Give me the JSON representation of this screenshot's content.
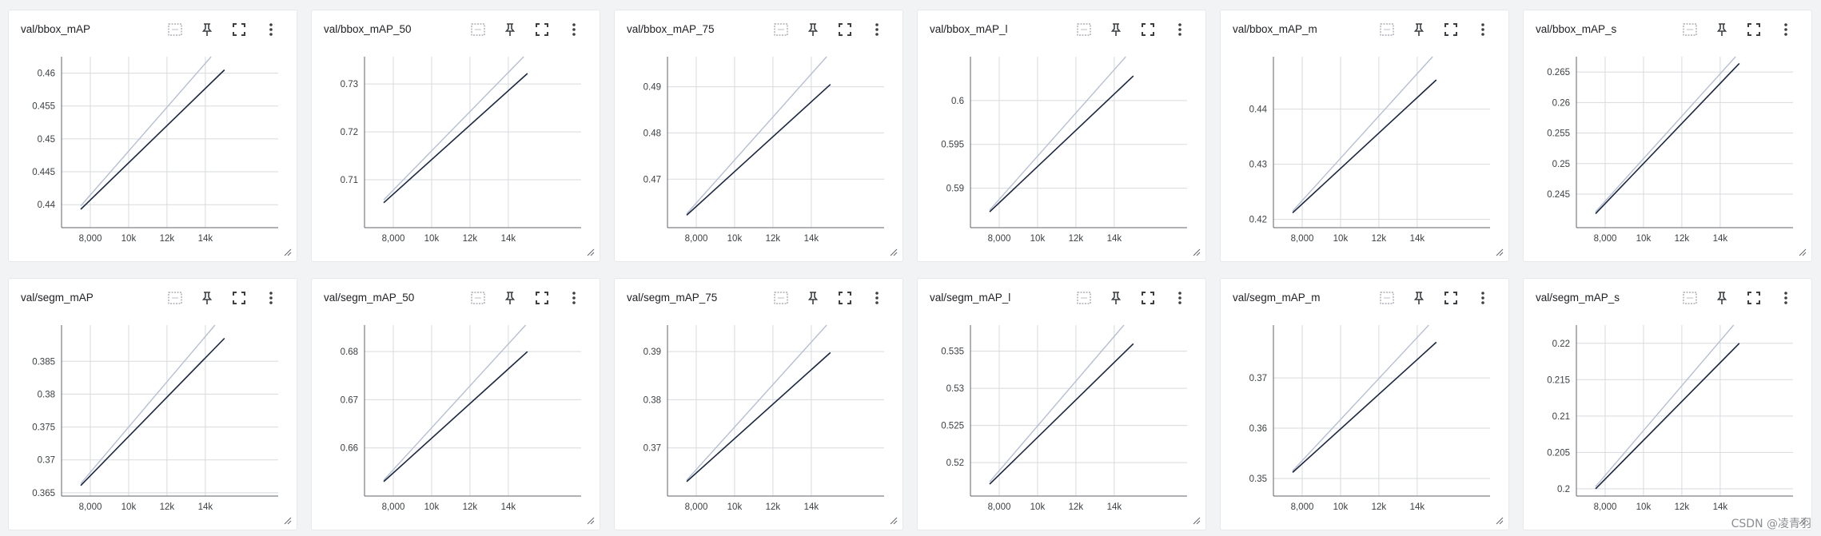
{
  "colors": {
    "smoothed": "#1b2640",
    "raw": "#b6bfd2",
    "grid": "#d7dadd",
    "axis": "#5f6368"
  },
  "icons": [
    "data-download-icon",
    "pin-icon",
    "fullscreen-icon",
    "more-vert-icon",
    "resize-handle-icon"
  ],
  "watermark": "CSDN @凌青羽",
  "chart_data": [
    {
      "type": "line",
      "title": "val/bbox_mAP",
      "xlabel": "",
      "ylabel": "",
      "xlim": [
        6500,
        17800
      ],
      "ylim": [
        0.4365,
        0.4625
      ],
      "xticks": [
        {
          "v": 8000,
          "label": "8,000"
        },
        {
          "v": 10000,
          "label": "10k"
        },
        {
          "v": 12000,
          "label": "12k"
        },
        {
          "v": 14000,
          "label": "14k"
        }
      ],
      "yticks": [
        {
          "v": 0.44,
          "label": "0.44"
        },
        {
          "v": 0.445,
          "label": "0.445"
        },
        {
          "v": 0.45,
          "label": "0.45"
        },
        {
          "v": 0.455,
          "label": "0.455"
        },
        {
          "v": 0.46,
          "label": "0.46"
        }
      ],
      "series": [
        {
          "x": [
            7500,
            15000
          ],
          "y": [
            0.4393,
            0.4605
          ]
        },
        {
          "x": [
            7500,
            14300
          ],
          "y": [
            0.4398,
            0.4625
          ]
        }
      ]
    },
    {
      "type": "line",
      "title": "val/bbox_mAP_50",
      "xlabel": "",
      "ylabel": "",
      "xlim": [
        6500,
        17800
      ],
      "ylim": [
        0.7,
        0.7357
      ],
      "xticks": [
        {
          "v": 8000,
          "label": "8,000"
        },
        {
          "v": 10000,
          "label": "10k"
        },
        {
          "v": 12000,
          "label": "12k"
        },
        {
          "v": 14000,
          "label": "14k"
        }
      ],
      "yticks": [
        {
          "v": 0.71,
          "label": "0.71"
        },
        {
          "v": 0.72,
          "label": "0.72"
        },
        {
          "v": 0.73,
          "label": "0.73"
        }
      ],
      "series": [
        {
          "x": [
            7500,
            15000
          ],
          "y": [
            0.7052,
            0.7322
          ]
        },
        {
          "x": [
            7500,
            14800
          ],
          "y": [
            0.7058,
            0.7357
          ]
        }
      ]
    },
    {
      "type": "line",
      "title": "val/bbox_mAP_75",
      "xlabel": "",
      "ylabel": "",
      "xlim": [
        6500,
        17800
      ],
      "ylim": [
        0.4595,
        0.4965
      ],
      "xticks": [
        {
          "v": 8000,
          "label": "8,000"
        },
        {
          "v": 10000,
          "label": "10k"
        },
        {
          "v": 12000,
          "label": "12k"
        },
        {
          "v": 14000,
          "label": "14k"
        }
      ],
      "yticks": [
        {
          "v": 0.47,
          "label": "0.47"
        },
        {
          "v": 0.48,
          "label": "0.48"
        },
        {
          "v": 0.49,
          "label": "0.49"
        }
      ],
      "series": [
        {
          "x": [
            7500,
            15000
          ],
          "y": [
            0.4622,
            0.4905
          ]
        },
        {
          "x": [
            7500,
            14800
          ],
          "y": [
            0.4625,
            0.4965
          ]
        }
      ]
    },
    {
      "type": "line",
      "title": "val/bbox_mAP_l",
      "xlabel": "",
      "ylabel": "",
      "xlim": [
        6500,
        17800
      ],
      "ylim": [
        0.5855,
        0.605
      ],
      "xticks": [
        {
          "v": 8000,
          "label": "8,000"
        },
        {
          "v": 10000,
          "label": "10k"
        },
        {
          "v": 12000,
          "label": "12k"
        },
        {
          "v": 14000,
          "label": "14k"
        }
      ],
      "yticks": [
        {
          "v": 0.59,
          "label": "0.59"
        },
        {
          "v": 0.595,
          "label": "0.595"
        },
        {
          "v": 0.6,
          "label": "0.6"
        }
      ],
      "series": [
        {
          "x": [
            7500,
            15000
          ],
          "y": [
            0.5873,
            0.6028
          ]
        },
        {
          "x": [
            7500,
            14600
          ],
          "y": [
            0.5875,
            0.605
          ]
        }
      ]
    },
    {
      "type": "line",
      "title": "val/bbox_mAP_m",
      "xlabel": "",
      "ylabel": "",
      "xlim": [
        6500,
        17800
      ],
      "ylim": [
        0.4185,
        0.4495
      ],
      "xticks": [
        {
          "v": 8000,
          "label": "8,000"
        },
        {
          "v": 10000,
          "label": "10k"
        },
        {
          "v": 12000,
          "label": "12k"
        },
        {
          "v": 14000,
          "label": "14k"
        }
      ],
      "yticks": [
        {
          "v": 0.42,
          "label": "0.42"
        },
        {
          "v": 0.43,
          "label": "0.43"
        },
        {
          "v": 0.44,
          "label": "0.44"
        }
      ],
      "series": [
        {
          "x": [
            7500,
            15000
          ],
          "y": [
            0.4212,
            0.4453
          ]
        },
        {
          "x": [
            7500,
            14800
          ],
          "y": [
            0.4215,
            0.4495
          ]
        }
      ]
    },
    {
      "type": "line",
      "title": "val/bbox_mAP_s",
      "xlabel": "",
      "ylabel": "",
      "xlim": [
        6500,
        17800
      ],
      "ylim": [
        0.2395,
        0.2675
      ],
      "xticks": [
        {
          "v": 8000,
          "label": "8,000"
        },
        {
          "v": 10000,
          "label": "10k"
        },
        {
          "v": 12000,
          "label": "12k"
        },
        {
          "v": 14000,
          "label": "14k"
        }
      ],
      "yticks": [
        {
          "v": 0.245,
          "label": "0.245"
        },
        {
          "v": 0.25,
          "label": "0.25"
        },
        {
          "v": 0.255,
          "label": "0.255"
        },
        {
          "v": 0.26,
          "label": "0.26"
        },
        {
          "v": 0.265,
          "label": "0.265"
        }
      ],
      "series": [
        {
          "x": [
            7500,
            15000
          ],
          "y": [
            0.2418,
            0.2664
          ]
        },
        {
          "x": [
            7500,
            14800
          ],
          "y": [
            0.2421,
            0.2675
          ]
        }
      ]
    },
    {
      "type": "line",
      "title": "val/segm_mAP",
      "xlabel": "",
      "ylabel": "",
      "xlim": [
        6500,
        17800
      ],
      "ylim": [
        0.3645,
        0.3905
      ],
      "xticks": [
        {
          "v": 8000,
          "label": "8,000"
        },
        {
          "v": 10000,
          "label": "10k"
        },
        {
          "v": 12000,
          "label": "12k"
        },
        {
          "v": 14000,
          "label": "14k"
        }
      ],
      "yticks": [
        {
          "v": 0.365,
          "label": "0.365"
        },
        {
          "v": 0.37,
          "label": "0.37"
        },
        {
          "v": 0.375,
          "label": "0.375"
        },
        {
          "v": 0.38,
          "label": "0.38"
        },
        {
          "v": 0.385,
          "label": "0.385"
        }
      ],
      "series": [
        {
          "x": [
            7500,
            15000
          ],
          "y": [
            0.3661,
            0.3885
          ]
        },
        {
          "x": [
            7500,
            14500
          ],
          "y": [
            0.3664,
            0.3905
          ]
        }
      ]
    },
    {
      "type": "line",
      "title": "val/segm_mAP_50",
      "xlabel": "",
      "ylabel": "",
      "xlim": [
        6500,
        17800
      ],
      "ylim": [
        0.65,
        0.6855
      ],
      "xticks": [
        {
          "v": 8000,
          "label": "8,000"
        },
        {
          "v": 10000,
          "label": "10k"
        },
        {
          "v": 12000,
          "label": "12k"
        },
        {
          "v": 14000,
          "label": "14k"
        }
      ],
      "yticks": [
        {
          "v": 0.66,
          "label": "0.66"
        },
        {
          "v": 0.67,
          "label": "0.67"
        },
        {
          "v": 0.68,
          "label": "0.68"
        }
      ],
      "series": [
        {
          "x": [
            7500,
            15000
          ],
          "y": [
            0.653,
            0.68
          ]
        },
        {
          "x": [
            7500,
            14900
          ],
          "y": [
            0.6533,
            0.6855
          ]
        }
      ]
    },
    {
      "type": "line",
      "title": "val/segm_mAP_75",
      "xlabel": "",
      "ylabel": "",
      "xlim": [
        6500,
        17800
      ],
      "ylim": [
        0.36,
        0.3955
      ],
      "xticks": [
        {
          "v": 8000,
          "label": "8,000"
        },
        {
          "v": 10000,
          "label": "10k"
        },
        {
          "v": 12000,
          "label": "12k"
        },
        {
          "v": 14000,
          "label": "14k"
        }
      ],
      "yticks": [
        {
          "v": 0.37,
          "label": "0.37"
        },
        {
          "v": 0.38,
          "label": "0.38"
        },
        {
          "v": 0.39,
          "label": "0.39"
        }
      ],
      "series": [
        {
          "x": [
            7500,
            15000
          ],
          "y": [
            0.363,
            0.3898
          ]
        },
        {
          "x": [
            7500,
            14800
          ],
          "y": [
            0.3633,
            0.3955
          ]
        }
      ]
    },
    {
      "type": "line",
      "title": "val/segm_mAP_l",
      "xlabel": "",
      "ylabel": "",
      "xlim": [
        6500,
        17800
      ],
      "ylim": [
        0.5155,
        0.5385
      ],
      "xticks": [
        {
          "v": 8000,
          "label": "8,000"
        },
        {
          "v": 10000,
          "label": "10k"
        },
        {
          "v": 12000,
          "label": "12k"
        },
        {
          "v": 14000,
          "label": "14k"
        }
      ],
      "yticks": [
        {
          "v": 0.52,
          "label": "0.52"
        },
        {
          "v": 0.525,
          "label": "0.525"
        },
        {
          "v": 0.53,
          "label": "0.53"
        },
        {
          "v": 0.535,
          "label": "0.535"
        }
      ],
      "series": [
        {
          "x": [
            7500,
            15000
          ],
          "y": [
            0.5171,
            0.536
          ]
        },
        {
          "x": [
            7500,
            14500
          ],
          "y": [
            0.5174,
            0.5385
          ]
        }
      ]
    },
    {
      "type": "line",
      "title": "val/segm_mAP_m",
      "xlabel": "",
      "ylabel": "",
      "xlim": [
        6500,
        17800
      ],
      "ylim": [
        0.3465,
        0.3805
      ],
      "xticks": [
        {
          "v": 8000,
          "label": "8,000"
        },
        {
          "v": 10000,
          "label": "10k"
        },
        {
          "v": 12000,
          "label": "12k"
        },
        {
          "v": 14000,
          "label": "14k"
        }
      ],
      "yticks": [
        {
          "v": 0.35,
          "label": "0.35"
        },
        {
          "v": 0.36,
          "label": "0.36"
        },
        {
          "v": 0.37,
          "label": "0.37"
        }
      ],
      "series": [
        {
          "x": [
            7500,
            15000
          ],
          "y": [
            0.3512,
            0.3771
          ]
        },
        {
          "x": [
            7500,
            14600
          ],
          "y": [
            0.3515,
            0.3805
          ]
        }
      ]
    },
    {
      "type": "line",
      "title": "val/segm_mAP_s",
      "xlabel": "",
      "ylabel": "",
      "xlim": [
        6500,
        17800
      ],
      "ylim": [
        0.199,
        0.2225
      ],
      "xticks": [
        {
          "v": 8000,
          "label": "8,000"
        },
        {
          "v": 10000,
          "label": "10k"
        },
        {
          "v": 12000,
          "label": "12k"
        },
        {
          "v": 14000,
          "label": "14k"
        }
      ],
      "yticks": [
        {
          "v": 0.2,
          "label": "0.2"
        },
        {
          "v": 0.205,
          "label": "0.205"
        },
        {
          "v": 0.21,
          "label": "0.21"
        },
        {
          "v": 0.215,
          "label": "0.215"
        },
        {
          "v": 0.22,
          "label": "0.22"
        }
      ],
      "series": [
        {
          "x": [
            7500,
            15000
          ],
          "y": [
            0.2,
            0.22
          ]
        },
        {
          "x": [
            7500,
            14700
          ],
          "y": [
            0.2003,
            0.2225
          ]
        }
      ]
    }
  ]
}
